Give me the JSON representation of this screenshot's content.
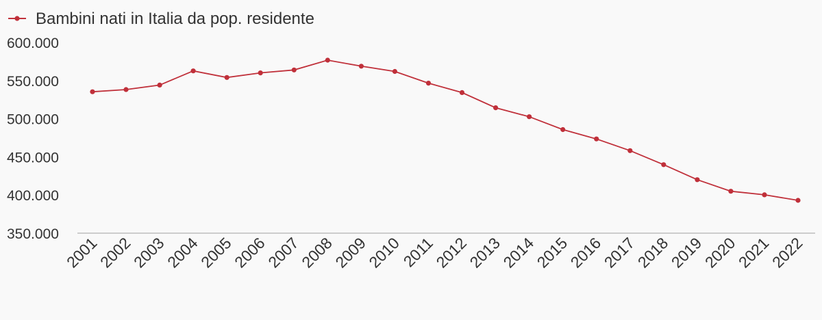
{
  "chart_data": {
    "type": "line",
    "title": "",
    "xlabel": "",
    "ylabel": "",
    "categories": [
      "2001",
      "2002",
      "2003",
      "2004",
      "2005",
      "2006",
      "2007",
      "2008",
      "2009",
      "2010",
      "2011",
      "2012",
      "2013",
      "2014",
      "2015",
      "2016",
      "2017",
      "2018",
      "2019",
      "2020",
      "2021",
      "2022"
    ],
    "series": [
      {
        "name": "Bambini nati in Italia da pop. residente",
        "color": "#c0303a",
        "values": [
          535282,
          538198,
          544063,
          562599,
          554022,
          560010,
          563933,
          576659,
          568857,
          561944,
          546607,
          534186,
          514308,
          502596,
          485780,
          473438,
          458151,
          439747,
          420084,
          404892,
          400249,
          393000
        ]
      }
    ],
    "ylim": [
      350000,
      600000
    ],
    "yticks": [
      350000,
      400000,
      450000,
      500000,
      550000,
      600000
    ],
    "ytick_labels": [
      "350.000",
      "400.000",
      "450.000",
      "500.000",
      "550.000",
      "600.000"
    ],
    "legend_position": "top-left",
    "grid": false
  }
}
